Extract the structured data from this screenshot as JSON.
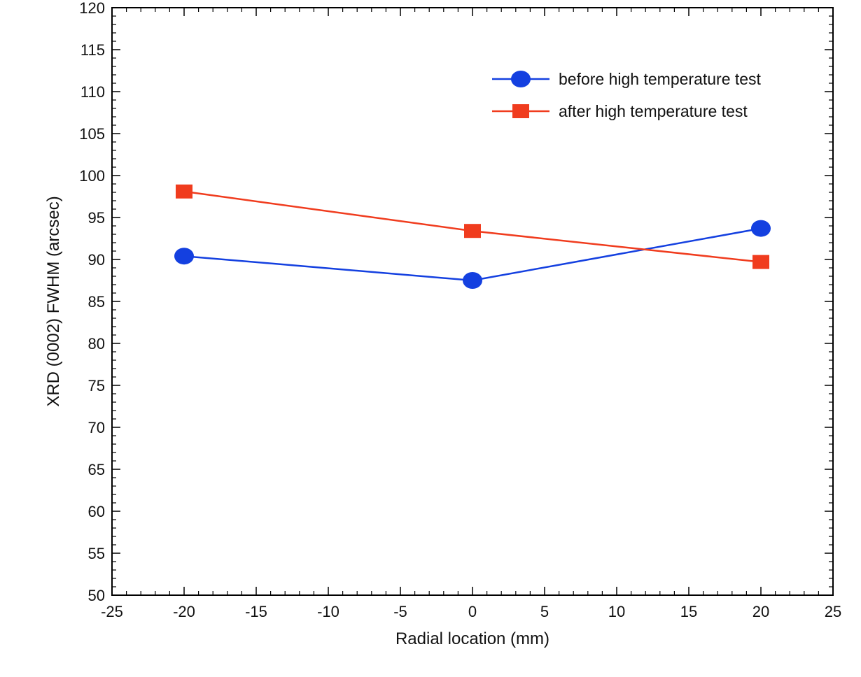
{
  "chart_data": {
    "type": "line",
    "xlabel": "Radial location (mm)",
    "ylabel": "XRD (0002) FWHM (arcsec)",
    "xlim": [
      -25,
      25
    ],
    "ylim": [
      50,
      120
    ],
    "xticks": [
      -25,
      -20,
      -15,
      -10,
      -5,
      0,
      5,
      10,
      15,
      20,
      25
    ],
    "yticks": [
      50,
      55,
      60,
      65,
      70,
      75,
      80,
      85,
      90,
      95,
      100,
      105,
      110,
      115,
      120
    ],
    "x": [
      -20,
      0,
      20
    ],
    "series": [
      {
        "name": "before high temperature test",
        "values": [
          90.4,
          87.5,
          93.7
        ],
        "color": "#1440e0",
        "marker": "circle"
      },
      {
        "name": "after high temperature test",
        "values": [
          98.1,
          93.4,
          89.7
        ],
        "color": "#f03c1e",
        "marker": "square"
      }
    ],
    "grid": false,
    "legend_position": "top-right"
  }
}
